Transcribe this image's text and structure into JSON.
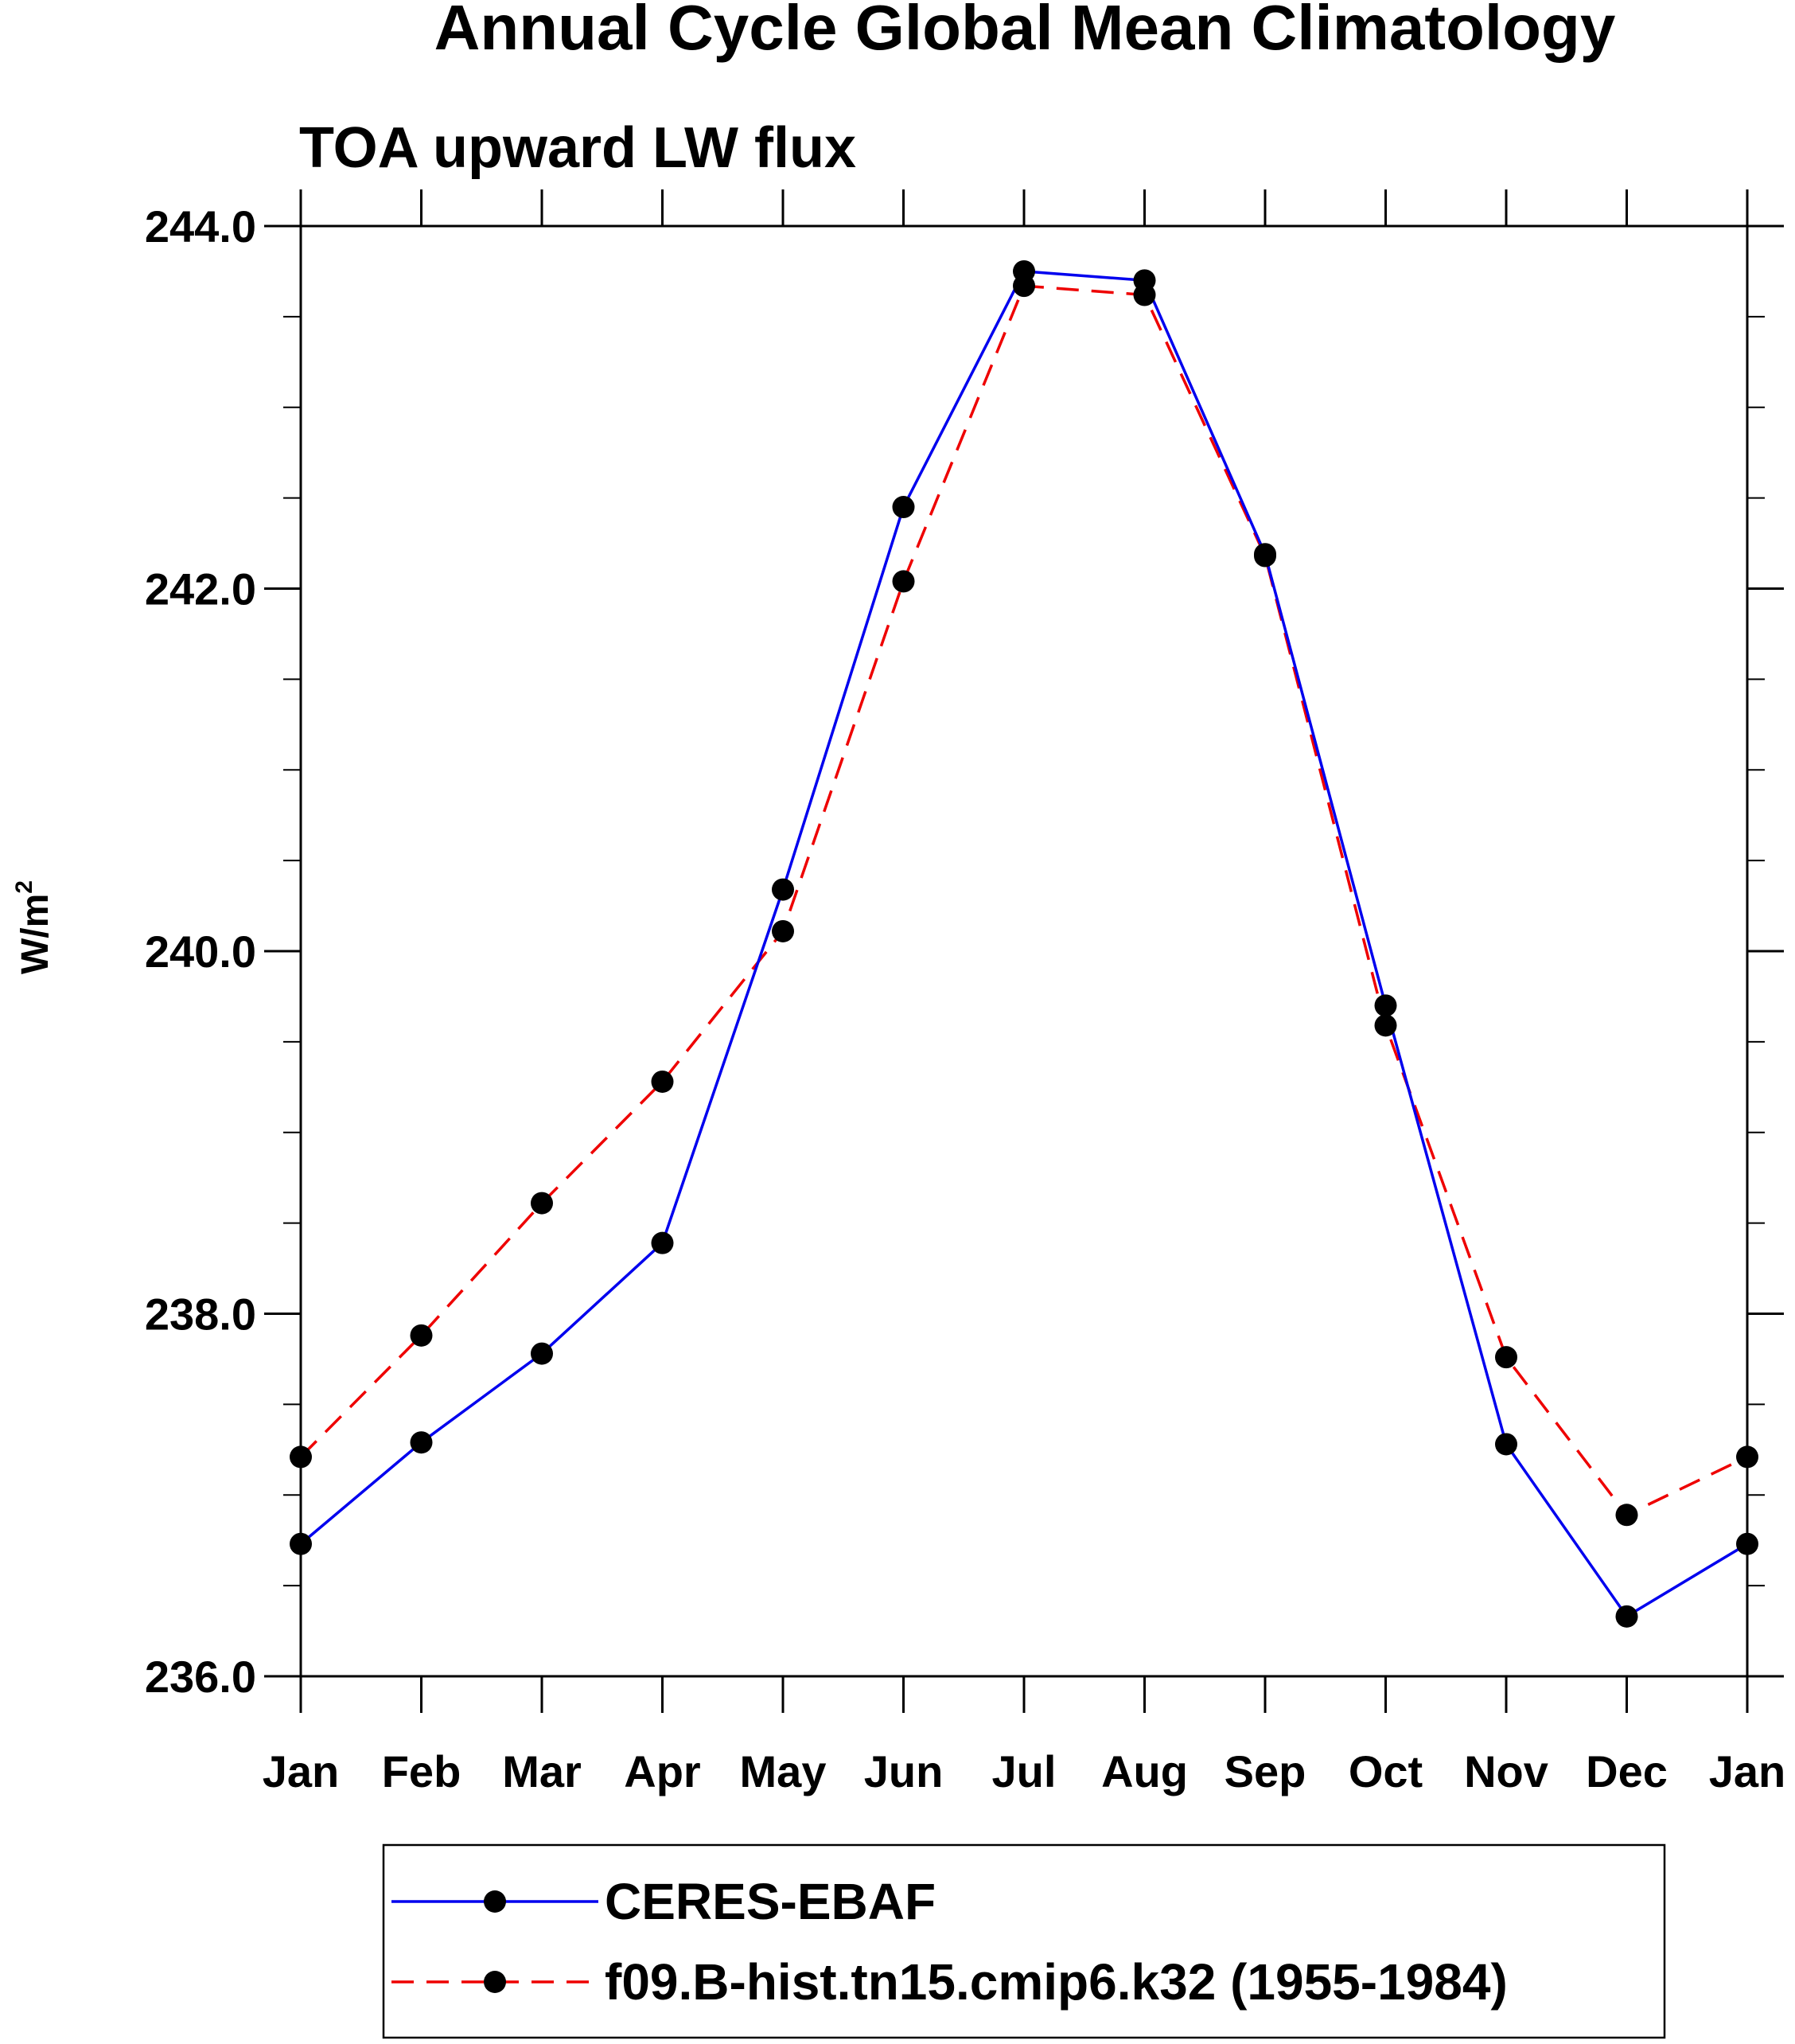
{
  "chart_data": {
    "type": "line",
    "title": "Annual Cycle Global Mean Climatology",
    "subtitle": "TOA upward LW flux",
    "xlabel": "",
    "ylabel": "W/m",
    "ylabel_superscript": "2",
    "categories": [
      "Jan",
      "Feb",
      "Mar",
      "Apr",
      "May",
      "Jun",
      "Jul",
      "Aug",
      "Sep",
      "Oct",
      "Nov",
      "Dec",
      "Jan"
    ],
    "ylim": [
      236.0,
      244.0
    ],
    "yticks": [
      236.0,
      238.0,
      240.0,
      242.0,
      244.0
    ],
    "ytick_labels": [
      "236.0",
      "238.0",
      "240.0",
      "242.0",
      "244.0"
    ],
    "y_minor_step": 0.5,
    "grid": false,
    "legend_position": "bottom",
    "series": [
      {
        "name": "CERES-EBAF",
        "color": "#0000ee",
        "line_style": "solid",
        "marker": "filled-circle",
        "values": [
          236.73,
          237.29,
          237.78,
          238.39,
          240.34,
          242.45,
          243.75,
          243.7,
          242.19,
          239.7,
          237.28,
          236.33,
          236.73
        ]
      },
      {
        "name": "f09.B-hist.tn15.cmip6.k32 (1955-1984)",
        "color": "#ee0000",
        "line_style": "dashed",
        "marker": "filled-circle",
        "values": [
          237.21,
          237.88,
          238.61,
          239.28,
          240.11,
          242.04,
          243.67,
          243.62,
          242.18,
          239.59,
          237.76,
          236.89,
          237.21
        ]
      }
    ]
  }
}
